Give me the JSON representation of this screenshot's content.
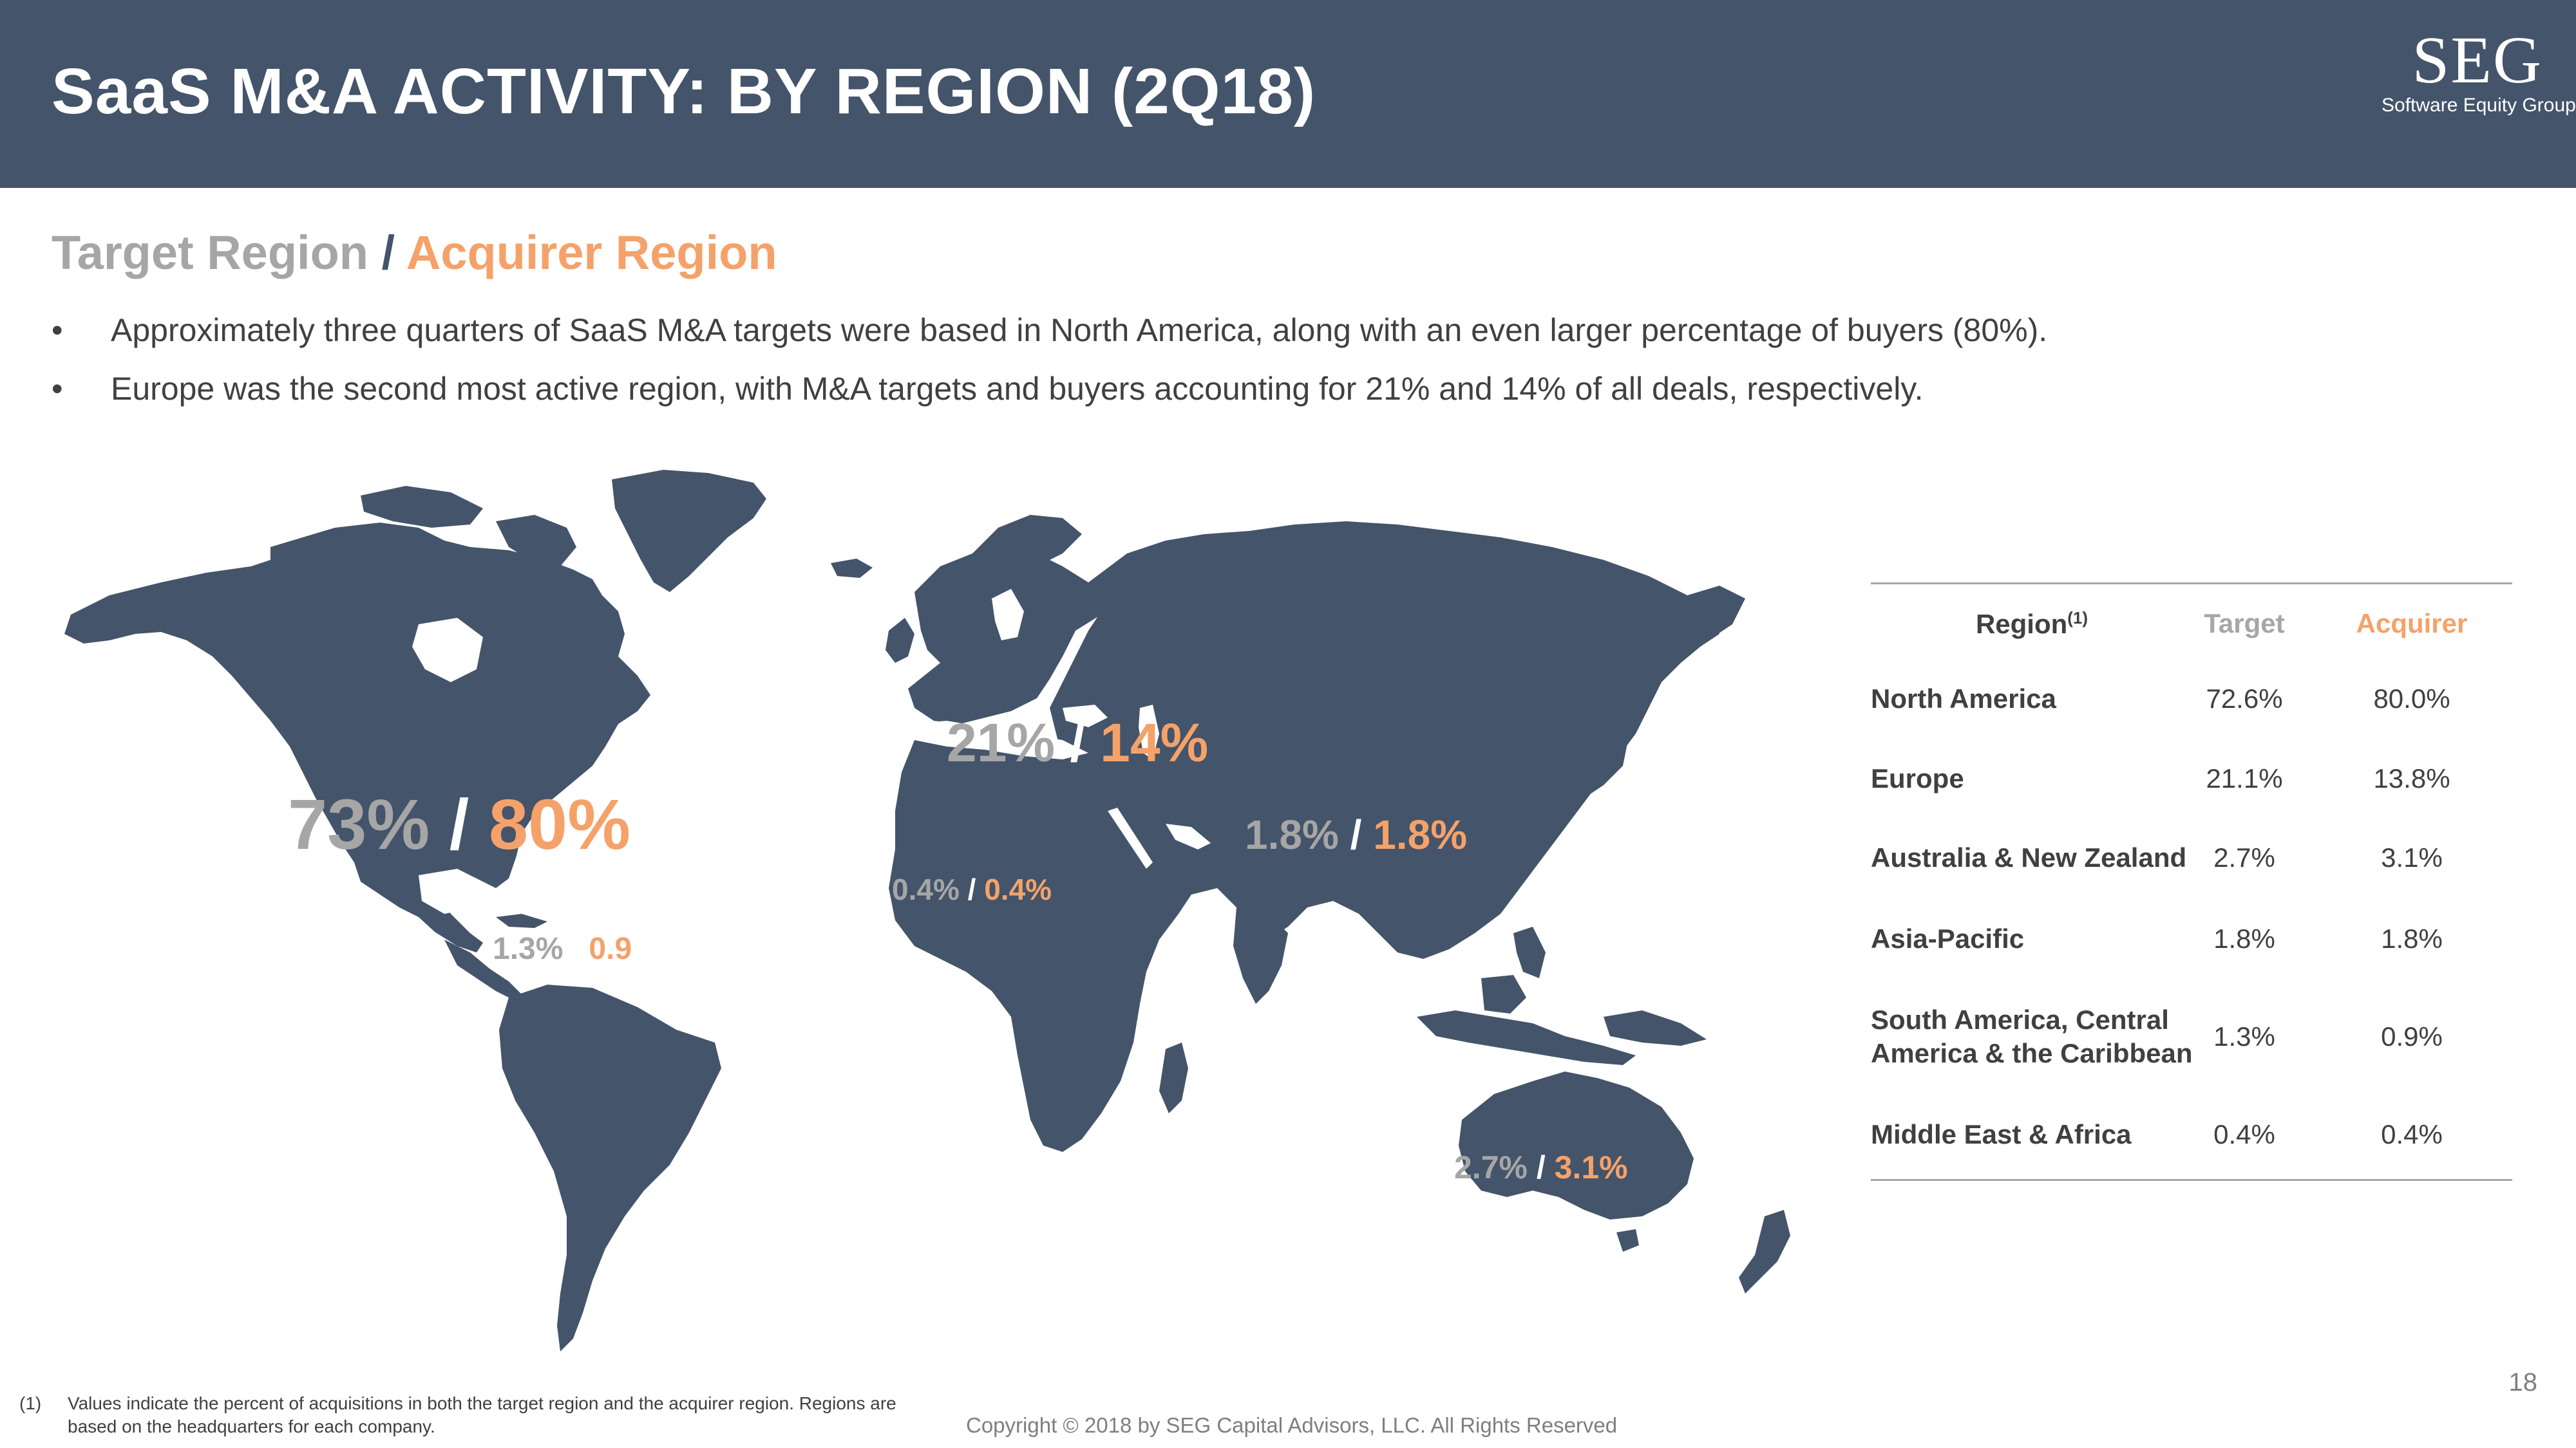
{
  "header": {
    "title": "SaaS M&A ACTIVITY: BY REGION (2Q18)",
    "logo_mark": "SEG",
    "logo_sub": "Software Equity Group"
  },
  "subtitle": {
    "target_text": "Target Region",
    "separator": " / ",
    "acquirer_text": "Acquirer Region"
  },
  "bullets": [
    "Approximately three quarters of SaaS M&A targets were based in North America, along with an even larger percentage of buyers (80%).",
    "Europe was the second most active region, with M&A targets and buyers accounting for 21% and 14% of all deals, respectively."
  ],
  "bullet_symbol": "•",
  "map": {
    "land_color": "#44546a",
    "target_color": "#a6a6a6",
    "acquirer_color": "#f4a26a",
    "labels": [
      {
        "region": "north-america",
        "target": "73%",
        "separator": " / ",
        "acquirer": "80%"
      },
      {
        "region": "europe",
        "target": "21%",
        "separator": " / ",
        "acquirer": "14%"
      },
      {
        "region": "asia-pacific",
        "target": "1.8%",
        "separator": " / ",
        "acquirer": "1.8%"
      },
      {
        "region": "middle-east-africa",
        "target": "0.4%",
        "separator": " / ",
        "acquirer": "0.4%"
      },
      {
        "region": "south-america",
        "target": "1.3%",
        "separator": " / ",
        "acquirer": "0.9"
      },
      {
        "region": "australia",
        "target": "2.7%",
        "separator": " / ",
        "acquirer": "3.1%"
      }
    ]
  },
  "table": {
    "headers": {
      "region": "Region",
      "region_sup": "(1)",
      "target": "Target",
      "acquirer": "Acquirer"
    },
    "rows": [
      {
        "region": [
          "North America"
        ],
        "target": "72.6%",
        "acquirer": "80.0%"
      },
      {
        "region": [
          "Europe"
        ],
        "target": "21.1%",
        "acquirer": "13.8%"
      },
      {
        "region": [
          "Australia & New Zealand"
        ],
        "target": "2.7%",
        "acquirer": "3.1%"
      },
      {
        "region": [
          "Asia-Pacific"
        ],
        "target": "1.8%",
        "acquirer": "1.8%"
      },
      {
        "region": [
          "South America, Central",
          "America & the Caribbean"
        ],
        "target": "1.3%",
        "acquirer": "0.9%"
      },
      {
        "region": [
          "Middle East & Africa"
        ],
        "target": "0.4%",
        "acquirer": "0.4%"
      }
    ]
  },
  "footnote": {
    "number": "(1)",
    "text": "Values indicate the percent of acquisitions in both the target region and the acquirer region. Regions are based on the headquarters for each company."
  },
  "copyright": "Copyright © 2018 by SEG Capital Advisors, LLC. All Rights Reserved",
  "page_number": "18"
}
